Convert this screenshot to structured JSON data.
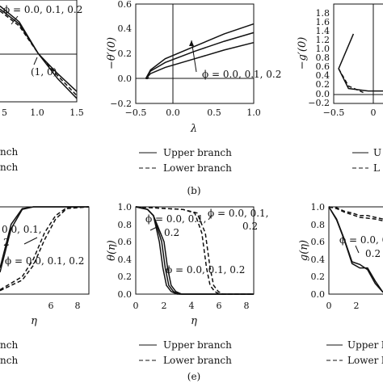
{
  "chart_data": [
    {
      "id": "a",
      "type": "line",
      "panel_label": "",
      "xlim": [
        0.5,
        1.5
      ],
      "ylim": [
        0,
        1
      ],
      "xticks": [
        "5",
        "1.0",
        "1.5"
      ],
      "xlabel": "",
      "ylabel": "",
      "annotations": [
        "ϕ = 0.0, 0.1, 0.2",
        "(1, 0)"
      ],
      "legend": [
        "nch",
        "nch"
      ],
      "series": [
        {
          "style": "solid",
          "x": [
            0.5,
            0.75,
            1.0,
            1.25,
            1.5
          ],
          "y": [
            0.95,
            0.8,
            0.5,
            0.3,
            0.12
          ]
        },
        {
          "style": "solid",
          "x": [
            0.5,
            0.75,
            1.0,
            1.25,
            1.5
          ],
          "y": [
            0.98,
            0.82,
            0.5,
            0.25,
            0.05
          ]
        },
        {
          "style": "dashed",
          "x": [
            0.5,
            0.75,
            1.0,
            1.25,
            1.5
          ],
          "y": [
            0.93,
            0.78,
            0.5,
            0.28,
            0.08
          ]
        }
      ]
    },
    {
      "id": "b",
      "type": "line",
      "panel_label": "(b)",
      "xlim": [
        -0.5,
        1.5
      ],
      "ylim": [
        -0.2,
        0.6
      ],
      "xticks": [
        "−0.5",
        "0.0",
        "0.5",
        "1.0",
        "1.5"
      ],
      "yticks": [
        "−0.2",
        "0.0",
        "0.2",
        "0.4",
        "0.6"
      ],
      "xlabel": "λ",
      "ylabel": "−θ′(0)",
      "annotations": [
        "ϕ = 0.0, 0.1, 0.2"
      ],
      "legend": [
        "Upper branch",
        "Lower branch"
      ],
      "series": [
        {
          "style": "solid",
          "x": [
            -0.33,
            -0.25,
            0,
            0.5,
            1.0,
            1.5
          ],
          "y": [
            0.0,
            0.07,
            0.16,
            0.26,
            0.36,
            0.44
          ]
        },
        {
          "style": "solid",
          "x": [
            -0.33,
            -0.25,
            0,
            0.5,
            1.0,
            1.5
          ],
          "y": [
            0.0,
            0.06,
            0.13,
            0.22,
            0.3,
            0.37
          ]
        },
        {
          "style": "solid",
          "x": [
            -0.33,
            -0.25,
            0,
            0.5,
            1.0,
            1.5
          ],
          "y": [
            0.0,
            0.04,
            0.09,
            0.16,
            0.23,
            0.29
          ]
        },
        {
          "style": "dashed",
          "x": [
            -0.33,
            -0.3,
            -0.28
          ],
          "y": [
            0.0,
            0.0,
            0.01
          ]
        }
      ]
    },
    {
      "id": "c",
      "type": "line",
      "panel_label": "",
      "xlim": [
        -0.5,
        0.0
      ],
      "ylim": [
        -0.2,
        1.8
      ],
      "xticks": [
        "−0.5",
        "0"
      ],
      "yticks": [
        "−0.2",
        "0.0",
        "0.2",
        "0.4",
        "0.6",
        "0.8",
        "1.0",
        "1.2",
        "1.4",
        "1.6",
        "1.8"
      ],
      "xlabel": "",
      "ylabel": "−g′(0)",
      "annotations": [],
      "legend": [
        "U",
        "L"
      ],
      "series": [
        {
          "style": "solid",
          "x": [
            -0.3,
            -0.45,
            -0.35,
            -0.15,
            0.0
          ],
          "y": [
            1.2,
            0.5,
            0.1,
            0.05,
            0.05
          ]
        },
        {
          "style": "dashed",
          "x": [
            -0.45,
            -0.35,
            -0.2
          ],
          "y": [
            0.5,
            0.15,
            0.02
          ]
        }
      ]
    },
    {
      "id": "d",
      "type": "line",
      "panel_label": "",
      "xlim": [
        2,
        10
      ],
      "ylim": [
        0,
        1
      ],
      "xticks": [
        "6",
        "8"
      ],
      "xlabel": "η",
      "ylabel": "",
      "annotations": [
        "0.0, 0.1,",
        "2",
        "ϕ = 0.0, 0.1, 0.2"
      ],
      "legend": [
        "nch",
        "nch"
      ],
      "series": [
        {
          "style": "solid",
          "x": [
            2,
            3,
            4,
            5,
            6,
            10
          ],
          "y": [
            0.3,
            0.8,
            0.98,
            1,
            1,
            1
          ]
        },
        {
          "style": "solid",
          "x": [
            2,
            3,
            4,
            5,
            6,
            10
          ],
          "y": [
            0.25,
            0.75,
            0.97,
            1,
            1,
            1
          ]
        },
        {
          "style": "dashed",
          "x": [
            2,
            4,
            5,
            6,
            7,
            8,
            10
          ],
          "y": [
            0.05,
            0.2,
            0.4,
            0.7,
            0.9,
            0.99,
            1
          ]
        },
        {
          "style": "dashed",
          "x": [
            2,
            4,
            5,
            6,
            7,
            8,
            10
          ],
          "y": [
            0.04,
            0.16,
            0.33,
            0.62,
            0.86,
            0.98,
            1
          ]
        }
      ]
    },
    {
      "id": "e",
      "type": "line",
      "panel_label": "(e)",
      "xlim": [
        0,
        10
      ],
      "ylim": [
        0,
        1
      ],
      "xticks": [
        "0",
        "2",
        "4",
        "6",
        "8"
      ],
      "yticks": [
        "0.0",
        "0.2",
        "0.4",
        "0.6",
        "0.8",
        "1.0"
      ],
      "xlabel": "η",
      "ylabel": "θ(η)",
      "annotations": [
        "ϕ = 0.0, 0.1,",
        "0.2",
        "ϕ = 0.0, 0.1, 0.2",
        "ϕ = 0.0, 0.1,",
        "0.2"
      ],
      "legend": [
        "Upper branch",
        "Lower branch"
      ],
      "series": [
        {
          "style": "solid",
          "x": [
            0,
            1,
            1.5,
            2,
            2.3,
            2.6,
            3,
            3.5,
            10
          ],
          "y": [
            1,
            0.97,
            0.9,
            0.6,
            0.3,
            0.1,
            0.03,
            0,
            0
          ]
        },
        {
          "style": "solid",
          "x": [
            0,
            1,
            1.5,
            2.2,
            2.5,
            2.8,
            3.2,
            3.7,
            10
          ],
          "y": [
            1,
            0.97,
            0.9,
            0.6,
            0.3,
            0.1,
            0.03,
            0,
            0
          ]
        },
        {
          "style": "solid",
          "x": [
            0,
            1,
            1.5,
            2.4,
            2.7,
            3.0,
            3.4,
            3.9,
            10
          ],
          "y": [
            1,
            0.97,
            0.9,
            0.6,
            0.3,
            0.1,
            0.03,
            0,
            0
          ]
        },
        {
          "style": "dashed",
          "x": [
            0,
            4,
            5,
            5.6,
            6,
            6.3,
            6.7,
            7.1,
            10
          ],
          "y": [
            1,
            0.97,
            0.93,
            0.7,
            0.3,
            0.1,
            0.03,
            0,
            0
          ]
        },
        {
          "style": "dashed",
          "x": [
            0,
            4,
            5.2,
            5.9,
            6.3,
            6.6,
            7,
            7.4,
            10
          ],
          "y": [
            1,
            0.97,
            0.93,
            0.7,
            0.3,
            0.1,
            0.03,
            0,
            0
          ]
        }
      ]
    },
    {
      "id": "f",
      "type": "line",
      "panel_label": "",
      "xlim": [
        0,
        3.5
      ],
      "ylim": [
        0,
        1
      ],
      "xticks": [
        "0",
        "2"
      ],
      "yticks": [
        "0.0",
        "0.2",
        "0.4",
        "0.6",
        "0.8",
        "1.0"
      ],
      "xlabel": "",
      "ylabel": "g(η)",
      "annotations": [
        "ϕ = 0.0, 0.1,",
        "0.2"
      ],
      "legend": [
        "Upper b",
        "Lower b"
      ],
      "series": [
        {
          "style": "solid",
          "x": [
            0,
            0.5,
            1,
            1.5,
            2,
            2.5,
            3,
            3.5
          ],
          "y": [
            1,
            0.85,
            0.62,
            0.35,
            0.3,
            0.3,
            0.15,
            0.02
          ]
        },
        {
          "style": "solid",
          "x": [
            0,
            0.5,
            1,
            1.5,
            2,
            2.5,
            3,
            3.5
          ],
          "y": [
            1,
            0.86,
            0.63,
            0.37,
            0.34,
            0.28,
            0.12,
            0.02
          ]
        },
        {
          "style": "dashed",
          "x": [
            0,
            0.5,
            1,
            1.5,
            2,
            2.5,
            3,
            3.5
          ],
          "y": [
            1,
            0.99,
            0.95,
            0.93,
            0.9,
            0.9,
            0.88,
            0.86
          ]
        },
        {
          "style": "dashed",
          "x": [
            0,
            0.5,
            1,
            1.5,
            2,
            2.5,
            3,
            3.5
          ],
          "y": [
            1,
            0.98,
            0.94,
            0.91,
            0.88,
            0.87,
            0.86,
            0.84
          ]
        }
      ]
    }
  ]
}
